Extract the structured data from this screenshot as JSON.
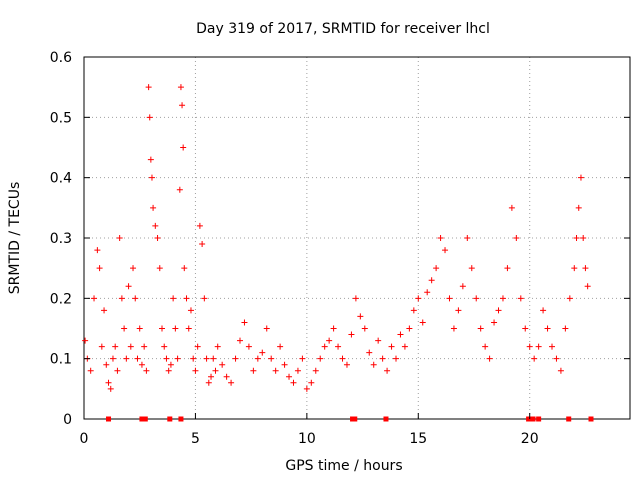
{
  "chart_data": {
    "type": "scatter",
    "title": "Day 319 of 2017, SRMTID for receiver lhcl",
    "xlabel": "GPS time / hours",
    "ylabel": "SRMTID / TECUs",
    "xlim": [
      0,
      24.5
    ],
    "ylim": [
      0,
      0.6
    ],
    "x_ticks": [
      0,
      5,
      10,
      15,
      20
    ],
    "x_tick_labels": [
      "0",
      "5",
      "10",
      "15",
      "20"
    ],
    "y_ticks": [
      0,
      0.1,
      0.2,
      0.3,
      0.4,
      0.5,
      0.6
    ],
    "y_tick_labels": [
      "0",
      "0.1",
      "0.2",
      "0.3",
      "0.4",
      "0.5",
      "0.6"
    ],
    "grid": true,
    "marker": "plus",
    "color": "#ff0000",
    "series": [
      {
        "name": "SRMTID",
        "x": [
          0.05,
          0.15,
          0.3,
          0.45,
          0.6,
          0.7,
          0.8,
          0.9,
          1.0,
          1.1,
          1.2,
          1.3,
          1.4,
          1.5,
          1.6,
          1.7,
          1.8,
          1.9,
          2.0,
          2.1,
          2.2,
          2.3,
          2.4,
          2.5,
          2.6,
          2.7,
          2.8,
          2.9,
          2.95,
          3.0,
          3.05,
          3.1,
          3.2,
          3.3,
          3.4,
          3.5,
          3.6,
          3.7,
          3.8,
          3.9,
          4.0,
          4.1,
          4.2,
          4.3,
          4.35,
          4.4,
          4.45,
          4.5,
          4.6,
          4.7,
          4.8,
          4.9,
          5.0,
          5.1,
          5.2,
          5.3,
          5.4,
          5.5,
          5.6,
          5.7,
          5.8,
          5.9,
          6.0,
          6.2,
          6.4,
          6.6,
          6.8,
          7.0,
          7.2,
          7.4,
          7.6,
          7.8,
          8.0,
          8.2,
          8.4,
          8.6,
          8.8,
          9.0,
          9.2,
          9.4,
          9.6,
          9.8,
          10.0,
          10.2,
          10.4,
          10.6,
          10.8,
          11.0,
          11.2,
          11.4,
          11.6,
          11.8,
          12.0,
          12.2,
          12.4,
          12.6,
          12.8,
          13.0,
          13.2,
          13.4,
          13.6,
          13.8,
          14.0,
          14.2,
          14.4,
          14.6,
          14.8,
          15.0,
          15.2,
          15.4,
          15.6,
          15.8,
          16.0,
          16.2,
          16.4,
          16.6,
          16.8,
          17.0,
          17.2,
          17.4,
          17.6,
          17.8,
          18.0,
          18.2,
          18.4,
          18.6,
          18.8,
          19.0,
          19.2,
          19.4,
          19.6,
          19.8,
          20.0,
          20.2,
          20.4,
          20.6,
          20.8,
          21.0,
          21.2,
          21.4,
          21.6,
          21.8,
          22.0,
          22.1,
          22.2,
          22.3,
          22.4,
          22.5,
          22.6
        ],
        "y": [
          0.13,
          0.1,
          0.08,
          0.2,
          0.28,
          0.25,
          0.12,
          0.18,
          0.09,
          0.06,
          0.05,
          0.1,
          0.12,
          0.08,
          0.3,
          0.2,
          0.15,
          0.1,
          0.22,
          0.12,
          0.25,
          0.2,
          0.1,
          0.15,
          0.09,
          0.12,
          0.08,
          0.55,
          0.5,
          0.43,
          0.4,
          0.35,
          0.32,
          0.3,
          0.25,
          0.15,
          0.12,
          0.1,
          0.08,
          0.09,
          0.2,
          0.15,
          0.1,
          0.38,
          0.55,
          0.52,
          0.45,
          0.25,
          0.2,
          0.15,
          0.18,
          0.1,
          0.08,
          0.12,
          0.32,
          0.29,
          0.2,
          0.1,
          0.06,
          0.07,
          0.1,
          0.08,
          0.12,
          0.09,
          0.07,
          0.06,
          0.1,
          0.13,
          0.16,
          0.12,
          0.08,
          0.1,
          0.11,
          0.15,
          0.1,
          0.08,
          0.12,
          0.09,
          0.07,
          0.06,
          0.08,
          0.1,
          0.05,
          0.06,
          0.08,
          0.1,
          0.12,
          0.13,
          0.15,
          0.12,
          0.1,
          0.09,
          0.14,
          0.2,
          0.17,
          0.15,
          0.11,
          0.09,
          0.13,
          0.1,
          0.08,
          0.12,
          0.1,
          0.14,
          0.12,
          0.15,
          0.18,
          0.2,
          0.16,
          0.21,
          0.23,
          0.25,
          0.3,
          0.28,
          0.2,
          0.15,
          0.18,
          0.22,
          0.3,
          0.25,
          0.2,
          0.15,
          0.12,
          0.1,
          0.16,
          0.18,
          0.2,
          0.25,
          0.35,
          0.3,
          0.2,
          0.15,
          0.12,
          0.1,
          0.12,
          0.18,
          0.15,
          0.12,
          0.1,
          0.08,
          0.15,
          0.2,
          0.25,
          0.3,
          0.35,
          0.4,
          0.3,
          0.25,
          0.22
        ]
      }
    ],
    "data_gap_markers_x": [
      1.1,
      2.6,
      2.75,
      3.85,
      4.35,
      12.05,
      12.15,
      13.55,
      19.95,
      20.15,
      20.4,
      21.75,
      22.75
    ]
  }
}
